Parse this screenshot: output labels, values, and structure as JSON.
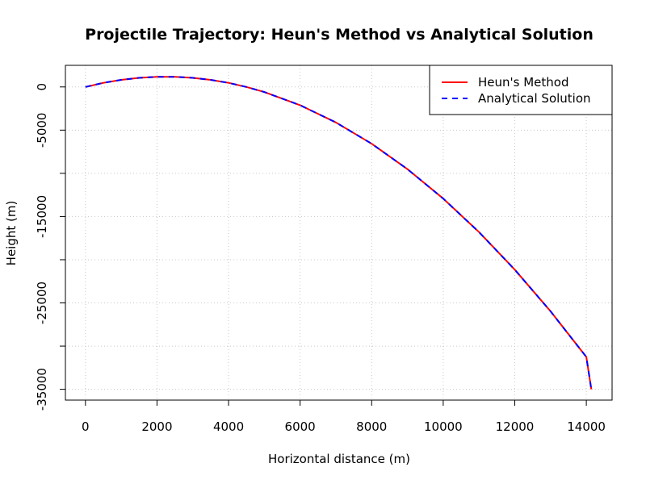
{
  "chart_data": {
    "type": "line",
    "title": "Projectile Trajectory: Heun's Method vs Analytical Solution",
    "xlabel": "Horizontal distance (m)",
    "ylabel": "Height (m)",
    "xlim": [
      -560,
      14720
    ],
    "ylim": [
      -36250,
      2500
    ],
    "x_ticks": [
      0,
      2000,
      4000,
      6000,
      8000,
      10000,
      12000,
      14000
    ],
    "x_tick_labels": [
      "0",
      "2000",
      "4000",
      "6000",
      "8000",
      "10000",
      "12000",
      "14000"
    ],
    "y_ticks": [
      0,
      -5000,
      -10000,
      -15000,
      -20000,
      -25000,
      -30000,
      -35000
    ],
    "y_tick_labels": [
      "0",
      "-5000",
      "",
      "-15000",
      "",
      "-25000",
      "",
      "-35000"
    ],
    "grid": true,
    "legend": {
      "position": "top-right",
      "entries": [
        "Heun's Method",
        "Analytical Solution"
      ]
    },
    "series": [
      {
        "name": "Heun's Method",
        "color": "#ff0000",
        "line_style": "solid",
        "x": [
          0,
          500,
          1000,
          1500,
          2000,
          2500,
          3000,
          3500,
          4000,
          4500,
          5000,
          6000,
          7000,
          8000,
          9000,
          10000,
          11000,
          12000,
          13000,
          14000,
          14140
        ],
        "y": [
          0,
          470,
          823,
          1057,
          1175,
          1175,
          1057,
          822,
          470,
          0,
          -588,
          -2115,
          -4113,
          -6580,
          -9518,
          -12925,
          -16803,
          -21150,
          -25968,
          -31255,
          -35000
        ]
      },
      {
        "name": "Analytical Solution",
        "color": "#0000ff",
        "line_style": "dashed",
        "x": [
          0,
          500,
          1000,
          1500,
          2000,
          2500,
          3000,
          3500,
          4000,
          4500,
          5000,
          6000,
          7000,
          8000,
          9000,
          10000,
          11000,
          12000,
          13000,
          14000,
          14140
        ],
        "y": [
          0,
          470,
          823,
          1057,
          1175,
          1175,
          1057,
          822,
          470,
          0,
          -588,
          -2115,
          -4113,
          -6580,
          -9518,
          -12925,
          -16803,
          -21150,
          -25968,
          -31255,
          -35000
        ]
      }
    ]
  }
}
